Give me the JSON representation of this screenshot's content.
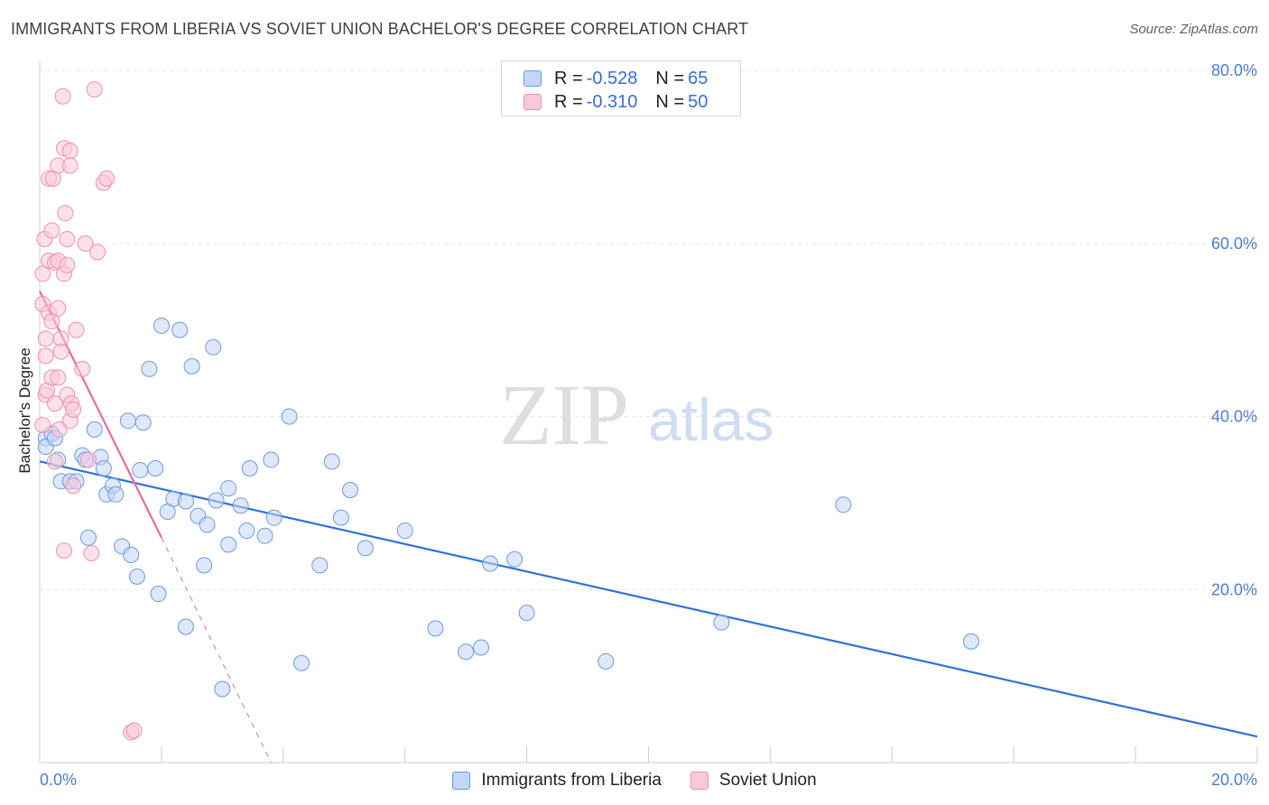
{
  "header": {
    "title": "IMMIGRANTS FROM LIBERIA VS SOVIET UNION BACHELOR'S DEGREE CORRELATION CHART",
    "source": "Source: ZipAtlas.com"
  },
  "watermark": {
    "zip": "ZIP",
    "atlas": "atlas"
  },
  "stats": [
    {
      "r_label": "R = ",
      "r_value": "-0.528",
      "n_label": "N = ",
      "n_value": "65",
      "color": "#6a9be0",
      "fill": "#c3d6f5"
    },
    {
      "r_label": "R = ",
      "r_value": "-0.310",
      "n_label": "N = ",
      "n_value": "50",
      "color": "#ef8fb0",
      "fill": "#f9c9d9"
    }
  ],
  "legend": [
    {
      "label": "Immigrants from Liberia",
      "color": "#6a9be0",
      "fill": "#c3d6f5"
    },
    {
      "label": "Soviet Union",
      "color": "#ef8fb0",
      "fill": "#f9c9d9"
    }
  ],
  "chart_data": {
    "type": "scatter",
    "title": "IMMIGRANTS FROM LIBERIA VS SOVIET UNION BACHELOR'S DEGREE CORRELATION CHART",
    "xlabel": "",
    "ylabel": "Bachelor's Degree",
    "xlim": [
      0,
      20
    ],
    "ylim": [
      0,
      80
    ],
    "x_ticks": [
      {
        "value": 0,
        "label": "0.0%"
      },
      {
        "value": 20,
        "label": "20.0%"
      }
    ],
    "y_ticks": [
      {
        "value": 20,
        "label": "20.0%"
      },
      {
        "value": 40,
        "label": "40.0%"
      },
      {
        "value": 60,
        "label": "60.0%"
      },
      {
        "value": 80,
        "label": "80.0%"
      }
    ],
    "grid": true,
    "legend_position": "bottom-center",
    "series": [
      {
        "name": "Immigrants from Liberia",
        "color": "#6a9be0",
        "fill": "#c3d6f5",
        "points": [
          [
            0.1,
            37.5
          ],
          [
            0.1,
            36.5
          ],
          [
            0.2,
            38.0
          ],
          [
            0.25,
            37.5
          ],
          [
            0.3,
            35.0
          ],
          [
            0.35,
            32.5
          ],
          [
            0.5,
            32.5
          ],
          [
            0.6,
            32.5
          ],
          [
            0.7,
            35.5
          ],
          [
            0.75,
            35.0
          ],
          [
            0.8,
            26.0
          ],
          [
            0.9,
            38.5
          ],
          [
            1.0,
            35.3
          ],
          [
            1.05,
            34.0
          ],
          [
            1.1,
            31.0
          ],
          [
            1.2,
            32.0
          ],
          [
            1.25,
            31.0
          ],
          [
            1.35,
            25.0
          ],
          [
            1.45,
            39.5
          ],
          [
            1.5,
            24.0
          ],
          [
            1.6,
            21.5
          ],
          [
            1.65,
            33.8
          ],
          [
            1.7,
            39.3
          ],
          [
            1.8,
            45.5
          ],
          [
            1.9,
            34.0
          ],
          [
            1.95,
            19.5
          ],
          [
            2.0,
            50.5
          ],
          [
            2.1,
            29.0
          ],
          [
            2.2,
            30.5
          ],
          [
            2.3,
            50.0
          ],
          [
            2.4,
            30.2
          ],
          [
            2.4,
            15.7
          ],
          [
            2.5,
            45.8
          ],
          [
            2.6,
            28.5
          ],
          [
            2.7,
            22.8
          ],
          [
            2.75,
            27.5
          ],
          [
            2.85,
            48.0
          ],
          [
            2.9,
            30.3
          ],
          [
            3.0,
            8.5
          ],
          [
            3.1,
            25.2
          ],
          [
            3.1,
            31.7
          ],
          [
            3.3,
            29.7
          ],
          [
            3.4,
            26.8
          ],
          [
            3.45,
            34.0
          ],
          [
            3.7,
            26.2
          ],
          [
            3.8,
            35.0
          ],
          [
            3.85,
            28.3
          ],
          [
            4.1,
            40.0
          ],
          [
            4.3,
            11.5
          ],
          [
            4.6,
            22.8
          ],
          [
            4.8,
            34.8
          ],
          [
            4.95,
            28.3
          ],
          [
            5.1,
            31.5
          ],
          [
            5.35,
            24.8
          ],
          [
            6.0,
            26.8
          ],
          [
            6.5,
            15.5
          ],
          [
            7.0,
            12.8
          ],
          [
            7.25,
            13.3
          ],
          [
            7.4,
            23.0
          ],
          [
            7.8,
            23.5
          ],
          [
            8.0,
            17.3
          ],
          [
            9.3,
            11.7
          ],
          [
            11.2,
            16.2
          ],
          [
            13.2,
            29.8
          ],
          [
            15.3,
            14.0
          ]
        ]
      },
      {
        "name": "Soviet Union",
        "color": "#ef8fb0",
        "fill": "#f9c9d9",
        "points": [
          [
            0.05,
            39.0
          ],
          [
            0.05,
            53.0
          ],
          [
            0.05,
            56.5
          ],
          [
            0.08,
            60.5
          ],
          [
            0.1,
            49.0
          ],
          [
            0.1,
            47.0
          ],
          [
            0.1,
            42.5
          ],
          [
            0.12,
            43.0
          ],
          [
            0.15,
            67.5
          ],
          [
            0.15,
            58.0
          ],
          [
            0.15,
            52.0
          ],
          [
            0.2,
            61.5
          ],
          [
            0.2,
            51.0
          ],
          [
            0.2,
            44.5
          ],
          [
            0.22,
            67.5
          ],
          [
            0.25,
            57.8
          ],
          [
            0.25,
            34.8
          ],
          [
            0.25,
            41.5
          ],
          [
            0.3,
            69.0
          ],
          [
            0.3,
            58.0
          ],
          [
            0.3,
            52.5
          ],
          [
            0.3,
            44.5
          ],
          [
            0.32,
            38.5
          ],
          [
            0.35,
            49.0
          ],
          [
            0.35,
            47.5
          ],
          [
            0.38,
            77.0
          ],
          [
            0.4,
            71.0
          ],
          [
            0.4,
            56.5
          ],
          [
            0.4,
            24.5
          ],
          [
            0.42,
            63.5
          ],
          [
            0.45,
            60.5
          ],
          [
            0.45,
            57.5
          ],
          [
            0.45,
            42.5
          ],
          [
            0.5,
            70.7
          ],
          [
            0.5,
            69.0
          ],
          [
            0.5,
            39.5
          ],
          [
            0.52,
            41.5
          ],
          [
            0.55,
            40.8
          ],
          [
            0.55,
            32.0
          ],
          [
            0.6,
            50.0
          ],
          [
            0.7,
            45.5
          ],
          [
            0.75,
            60.0
          ],
          [
            0.8,
            35.0
          ],
          [
            0.85,
            24.2
          ],
          [
            0.9,
            77.8
          ],
          [
            0.95,
            59.0
          ],
          [
            1.05,
            67.0
          ],
          [
            1.1,
            67.5
          ],
          [
            1.5,
            3.5
          ],
          [
            1.55,
            3.7
          ]
        ]
      }
    ],
    "trendlines": [
      {
        "series": "Immigrants from Liberia",
        "x1": 0.0,
        "y1": 34.8,
        "x2": 20.0,
        "y2": 3.0,
        "style": "solid"
      },
      {
        "series": "Soviet Union",
        "x1": 0.0,
        "y1": 54.5,
        "x2": 2.0,
        "y2": 26.0,
        "style": "solid"
      },
      {
        "series": "Soviet Union",
        "x1": 2.0,
        "y1": 26.0,
        "x2": 3.8,
        "y2": 0.0,
        "style": "dashed"
      }
    ]
  }
}
